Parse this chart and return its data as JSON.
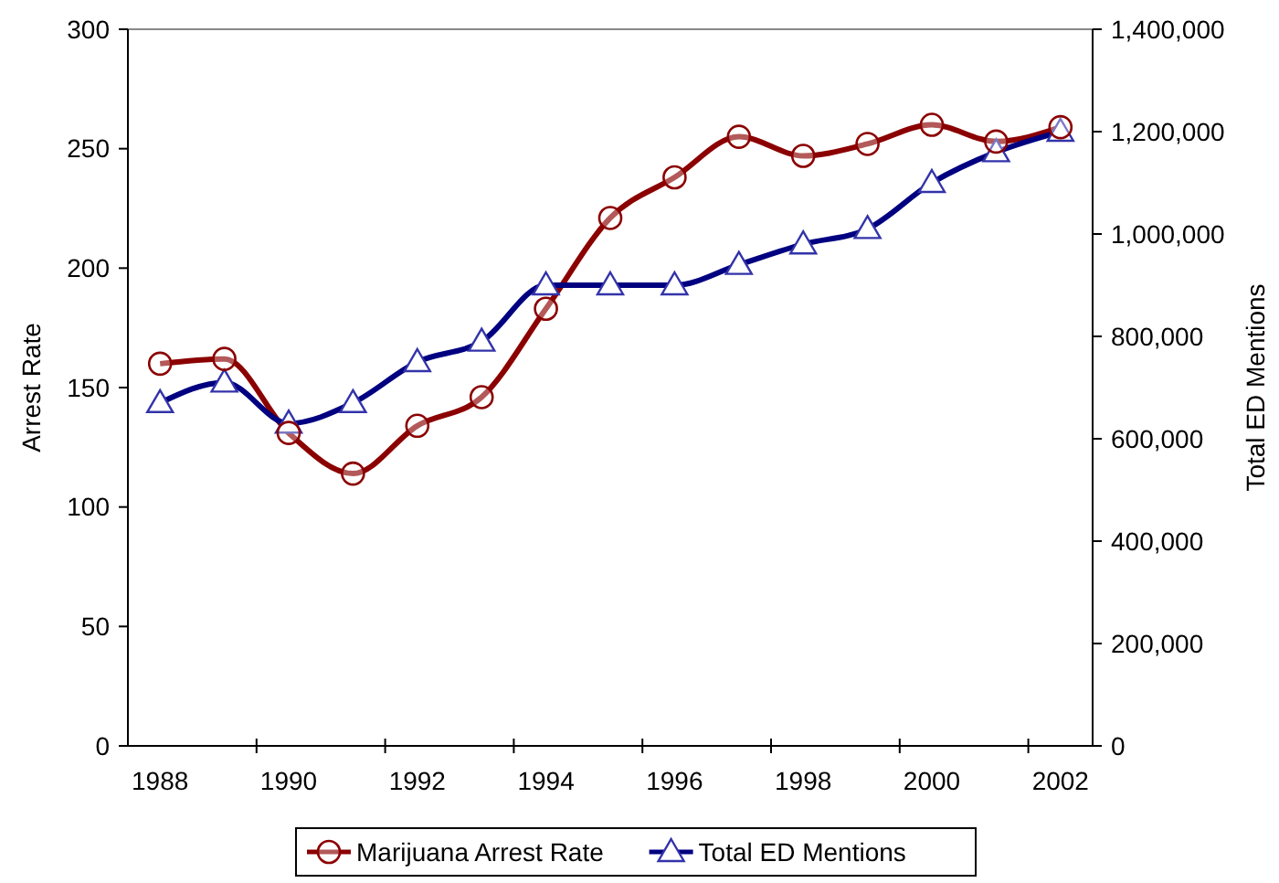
{
  "chart_data": {
    "type": "line",
    "xlabel": null,
    "ylabel": "Arrest Rate",
    "y2label": "Total ED Mentions",
    "categories": [
      "1988",
      null,
      "1990",
      null,
      "1992",
      null,
      "1994",
      null,
      "1996",
      null,
      "1998",
      null,
      "2000",
      null,
      "2002"
    ],
    "series": [
      {
        "name": "Marijuana Arrest Rate",
        "color": "#8b0000",
        "marker": "circle",
        "values": [
          160,
          162,
          131,
          114,
          134,
          146,
          183,
          221,
          238,
          255,
          247,
          252,
          260,
          253,
          259
        ]
      },
      {
        "name": "Total ED Mentions",
        "color": "#000080",
        "marker": "triangle",
        "axis": "y2",
        "values": [
          670000,
          710000,
          630000,
          670000,
          750000,
          790000,
          900000,
          900000,
          900000,
          940000,
          980000,
          1010000,
          1100000,
          1160000,
          1200000
        ]
      }
    ],
    "ylim": [
      0,
      300
    ],
    "yticks": [
      0,
      50,
      100,
      150,
      200,
      250,
      300
    ],
    "y2lim": [
      0,
      1400000
    ],
    "y2ticks": [
      {
        "value": 0,
        "label": "0"
      },
      {
        "value": 200000,
        "label": "200,000"
      },
      {
        "value": 400000,
        "label": "400,000"
      },
      {
        "value": 600000,
        "label": "600,000"
      },
      {
        "value": 800000,
        "label": "800,000"
      },
      {
        "value": 1000000,
        "label": "1,000,000"
      },
      {
        "value": 1200000,
        "label": "1,200,000"
      },
      {
        "value": 1400000,
        "label": "1,400,000"
      }
    ],
    "legend": "bottom",
    "grid": false
  }
}
